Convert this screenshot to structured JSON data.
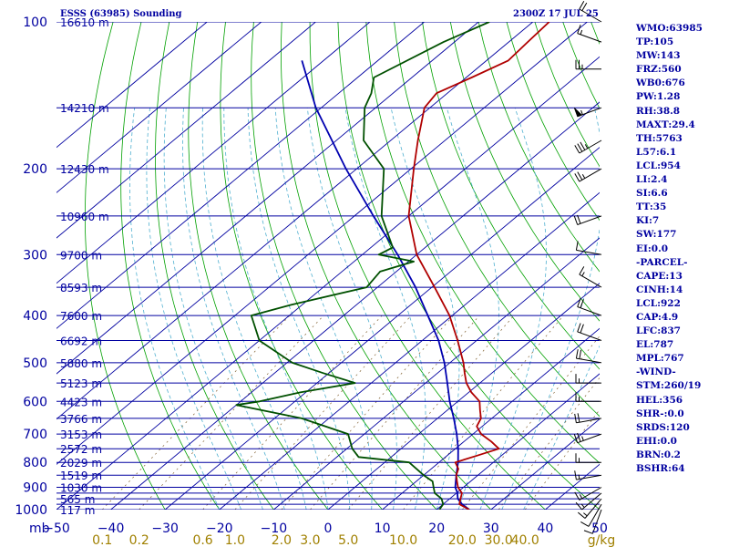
{
  "title": {
    "station": "ESSS (63985) Sounding",
    "time": "2300Z 17 JUL 25"
  },
  "indices": [
    "WMO:63985",
    "TP:105",
    "MW:143",
    "FRZ:560",
    "WB0:676",
    "PW:1.28",
    "RH:38.8",
    "MAXT:29.4",
    "TH:5763",
    "L57:6.1",
    "LCL:954",
    "LI:2.4",
    "SI:6.6",
    "TT:35",
    "KI:7",
    "SW:177",
    "EI:0.0",
    "-PARCEL-",
    "CAPE:13",
    "CINH:14",
    "LCL:922",
    "CAP:4.9",
    "LFC:837",
    "EL:787",
    "MPL:767",
    "-WIND-",
    "STM:260/19",
    "HEL:356",
    "SHR-:0.0",
    "SRDS:120",
    "EHI:0.0",
    "BRN:0.2",
    "BSHR:64"
  ],
  "colors": {
    "isobar": "#0000a0",
    "isotherm": "#0000a0",
    "dry_adiabat": "#00a000",
    "moist_adiabat": "#50b0d0",
    "mixing_ratio": "#806030",
    "temperature": "#b00000",
    "dewpoint": "#005000",
    "parcel": "#0000b0",
    "axis_text": "#0000a0",
    "mixing_label": "#a08000"
  },
  "chart_data": {
    "type": "skew-t log-p",
    "pressure_levels": [
      100,
      150,
      200,
      250,
      300,
      350,
      400,
      450,
      500,
      550,
      600,
      650,
      700,
      750,
      800,
      850,
      900,
      925,
      950,
      975,
      1000
    ],
    "pressure_labels": [
      {
        "p": 100,
        "label": "100"
      },
      {
        "p": 200,
        "label": "200"
      },
      {
        "p": 300,
        "label": "300"
      },
      {
        "p": 400,
        "label": "400"
      },
      {
        "p": 500,
        "label": "500"
      },
      {
        "p": 600,
        "label": "600"
      },
      {
        "p": 700,
        "label": "700"
      },
      {
        "p": 800,
        "label": "800"
      },
      {
        "p": 900,
        "label": "900"
      },
      {
        "p": 1000,
        "label": "1000"
      }
    ],
    "height_labels": [
      {
        "p": 100,
        "label": "16610 m"
      },
      {
        "p": 150,
        "label": "14210 m"
      },
      {
        "p": 200,
        "label": "12430 m"
      },
      {
        "p": 250,
        "label": "10960 m"
      },
      {
        "p": 300,
        "label": "9700 m"
      },
      {
        "p": 350,
        "label": "8593 m"
      },
      {
        "p": 400,
        "label": "7600 m"
      },
      {
        "p": 450,
        "label": "6692 m"
      },
      {
        "p": 500,
        "label": "5880 m"
      },
      {
        "p": 550,
        "label": "5123 m"
      },
      {
        "p": 600,
        "label": "4423 m"
      },
      {
        "p": 650,
        "label": "3766 m"
      },
      {
        "p": 700,
        "label": "3153 m"
      },
      {
        "p": 750,
        "label": "2572 m"
      },
      {
        "p": 800,
        "label": "2029 m"
      },
      {
        "p": 850,
        "label": "1519 m"
      },
      {
        "p": 900,
        "label": "1030 m"
      },
      {
        "p": 950,
        "label": "565 m"
      },
      {
        "p": 1000,
        "label": "117 m"
      }
    ],
    "x_ticks": [
      {
        "t": -50,
        "label": "−50"
      },
      {
        "t": -40,
        "label": "−40"
      },
      {
        "t": -30,
        "label": "−30"
      },
      {
        "t": -20,
        "label": "−20"
      },
      {
        "t": -10,
        "label": "−10"
      },
      {
        "t": 0,
        "label": "0"
      },
      {
        "t": 10,
        "label": "10"
      },
      {
        "t": 20,
        "label": "20"
      },
      {
        "t": 30,
        "label": "30"
      },
      {
        "t": 40,
        "label": "40"
      },
      {
        "t": 50,
        "label": "50"
      }
    ],
    "x_axis_prefix": "mb",
    "mixing_ratio_labels": [
      "0.1",
      "0.2",
      "0.6",
      "1.0",
      "2.0",
      "3.0",
      "5.0",
      "10.0",
      "20.0",
      "30.0",
      "40.0"
    ],
    "mixing_ratio_unit": "g/kg",
    "temperature_profile": [
      {
        "p": 1000,
        "t": 26.0
      },
      {
        "p": 975,
        "t": 23.0
      },
      {
        "p": 950,
        "t": 22.0
      },
      {
        "p": 925,
        "t": 21.0
      },
      {
        "p": 900,
        "t": 19.0
      },
      {
        "p": 875,
        "t": 17.5
      },
      {
        "p": 850,
        "t": 16.0
      },
      {
        "p": 825,
        "t": 15.0
      },
      {
        "p": 800,
        "t": 13.0
      },
      {
        "p": 775,
        "t": 15.5
      },
      {
        "p": 750,
        "t": 18.0
      },
      {
        "p": 725,
        "t": 15.0
      },
      {
        "p": 700,
        "t": 11.5
      },
      {
        "p": 675,
        "t": 9.0
      },
      {
        "p": 650,
        "t": 8.0
      },
      {
        "p": 625,
        "t": 6.0
      },
      {
        "p": 600,
        "t": 4.0
      },
      {
        "p": 575,
        "t": 0.5
      },
      {
        "p": 550,
        "t": -2.5
      },
      {
        "p": 525,
        "t": -5.0
      },
      {
        "p": 500,
        "t": -7.5
      },
      {
        "p": 450,
        "t": -13.5
      },
      {
        "p": 400,
        "t": -20.5
      },
      {
        "p": 350,
        "t": -29.5
      },
      {
        "p": 300,
        "t": -40.0
      },
      {
        "p": 250,
        "t": -50.0
      },
      {
        "p": 200,
        "t": -59.5
      },
      {
        "p": 175,
        "t": -65.0
      },
      {
        "p": 150,
        "t": -71.0
      },
      {
        "p": 140,
        "t": -72.0
      },
      {
        "p": 130,
        "t": -69.0
      },
      {
        "p": 120,
        "t": -66.0
      },
      {
        "p": 110,
        "t": -66.5
      },
      {
        "p": 100,
        "t": -67.0
      }
    ],
    "dewpoint_profile": [
      {
        "p": 1000,
        "t": 20.5
      },
      {
        "p": 975,
        "t": 20.0
      },
      {
        "p": 950,
        "t": 18.5
      },
      {
        "p": 925,
        "t": 16.0
      },
      {
        "p": 900,
        "t": 14.5
      },
      {
        "p": 875,
        "t": 13.0
      },
      {
        "p": 850,
        "t": 10.0
      },
      {
        "p": 800,
        "t": 4.5
      },
      {
        "p": 780,
        "t": -6.0
      },
      {
        "p": 750,
        "t": -9.0
      },
      {
        "p": 700,
        "t": -13.0
      },
      {
        "p": 650,
        "t": -25.0
      },
      {
        "p": 610,
        "t": -40.0
      },
      {
        "p": 600,
        "t": -36.5
      },
      {
        "p": 575,
        "t": -31.0
      },
      {
        "p": 550,
        "t": -23.0
      },
      {
        "p": 525,
        "t": -31.0
      },
      {
        "p": 500,
        "t": -39.0
      },
      {
        "p": 450,
        "t": -50.0
      },
      {
        "p": 400,
        "t": -57.0
      },
      {
        "p": 380,
        "t": -52.0
      },
      {
        "p": 350,
        "t": -42.0
      },
      {
        "p": 325,
        "t": -43.0
      },
      {
        "p": 310,
        "t": -39.0
      },
      {
        "p": 300,
        "t": -47.0
      },
      {
        "p": 290,
        "t": -46.0
      },
      {
        "p": 250,
        "t": -55.0
      },
      {
        "p": 200,
        "t": -65.0
      },
      {
        "p": 175,
        "t": -75.0
      },
      {
        "p": 150,
        "t": -82.0
      },
      {
        "p": 140,
        "t": -84.0
      },
      {
        "p": 130,
        "t": -87.0
      },
      {
        "p": 110,
        "t": -82.0
      },
      {
        "p": 100,
        "t": -78.0
      }
    ],
    "parcel_profile": [
      {
        "p": 1000,
        "t": 26.0
      },
      {
        "p": 975,
        "t": 23.5
      },
      {
        "p": 950,
        "t": 21.5
      },
      {
        "p": 922,
        "t": 20.0
      },
      {
        "p": 900,
        "t": 18.5
      },
      {
        "p": 850,
        "t": 16.0
      },
      {
        "p": 800,
        "t": 13.5
      },
      {
        "p": 750,
        "t": 10.5
      },
      {
        "p": 700,
        "t": 7.0
      },
      {
        "p": 650,
        "t": 3.0
      },
      {
        "p": 600,
        "t": -1.5
      },
      {
        "p": 550,
        "t": -6.0
      },
      {
        "p": 500,
        "t": -11.0
      },
      {
        "p": 450,
        "t": -17.0
      },
      {
        "p": 400,
        "t": -24.5
      },
      {
        "p": 350,
        "t": -33.0
      },
      {
        "p": 300,
        "t": -43.5
      },
      {
        "p": 250,
        "t": -56.5
      },
      {
        "p": 200,
        "t": -72.0
      },
      {
        "p": 150,
        "t": -91.0
      },
      {
        "p": 120,
        "t": -104.0
      }
    ],
    "wind_barbs": [
      {
        "p": 1000,
        "dir": 200,
        "kt": 10
      },
      {
        "p": 975,
        "dir": 210,
        "kt": 10
      },
      {
        "p": 950,
        "dir": 220,
        "kt": 15
      },
      {
        "p": 925,
        "dir": 230,
        "kt": 15
      },
      {
        "p": 900,
        "dir": 240,
        "kt": 15
      },
      {
        "p": 850,
        "dir": 260,
        "kt": 15
      },
      {
        "p": 800,
        "dir": 270,
        "kt": 15
      },
      {
        "p": 700,
        "dir": 250,
        "kt": 25
      },
      {
        "p": 650,
        "dir": 260,
        "kt": 20
      },
      {
        "p": 600,
        "dir": 270,
        "kt": 15
      },
      {
        "p": 550,
        "dir": 270,
        "kt": 15
      },
      {
        "p": 500,
        "dir": 280,
        "kt": 20
      },
      {
        "p": 450,
        "dir": 290,
        "kt": 20
      },
      {
        "p": 400,
        "dir": 290,
        "kt": 20
      },
      {
        "p": 350,
        "dir": 300,
        "kt": 15
      },
      {
        "p": 300,
        "dir": 280,
        "kt": 10
      },
      {
        "p": 250,
        "dir": 250,
        "kt": 20
      },
      {
        "p": 200,
        "dir": 240,
        "kt": 25
      },
      {
        "p": 175,
        "dir": 240,
        "kt": 35
      },
      {
        "p": 150,
        "dir": 250,
        "kt": 55
      },
      {
        "p": 125,
        "dir": 270,
        "kt": 25
      },
      {
        "p": 110,
        "dir": 290,
        "kt": 15
      },
      {
        "p": 100,
        "dir": 300,
        "kt": 20
      }
    ],
    "t_range": [
      -50,
      50
    ],
    "p_range": [
      100,
      1000
    ],
    "grid": true
  }
}
